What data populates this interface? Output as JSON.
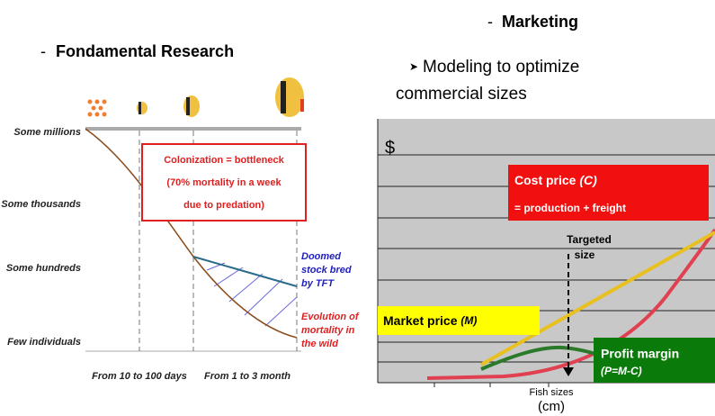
{
  "left": {
    "heading": "Fondamental Research",
    "y_labels": [
      "Some millions",
      "Some thousands",
      "Some hundreds",
      "Few individuals"
    ],
    "x_labels": [
      "From 10 to 100 days",
      "From 1 to 3 month"
    ],
    "box_lines": [
      "Colonization = bottleneck",
      "(70% mortality in a week",
      "due to predation)"
    ],
    "blue_note": [
      "Doomed",
      "stock bred",
      "by TFT"
    ],
    "red_note": [
      "Evolution of",
      "mortality in",
      "the wild"
    ]
  },
  "right": {
    "heading": "Marketing",
    "bullet": [
      "Modeling to optimize",
      "commercial sizes"
    ],
    "currency": "$",
    "cost_box": {
      "title": "Cost price",
      "symbol": "(C)",
      "detail": "= production + freight"
    },
    "market_box": {
      "title": "Market price",
      "symbol": "(M)"
    },
    "profit_box": {
      "title": "Profit margin",
      "symbol": "(P=M-C)"
    },
    "target": [
      "Targeted",
      "size"
    ],
    "x_label": [
      "Fish sizes",
      "(cm)"
    ]
  }
}
